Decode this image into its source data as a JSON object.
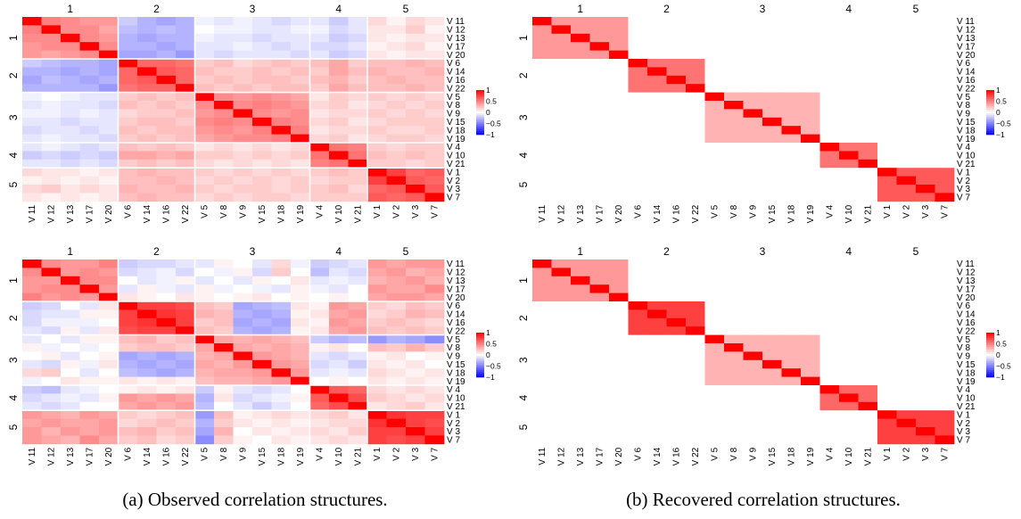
{
  "variables": [
    "V 11",
    "V 12",
    "V 13",
    "V 17",
    "V 20",
    "V 6",
    "V 14",
    "V 16",
    "V 22",
    "V 5",
    "V 8",
    "V 9",
    "V 15",
    "V 18",
    "V 19",
    "V 4",
    "V 10",
    "V 21",
    "V 1",
    "V 2",
    "V 3",
    "V 7"
  ],
  "group_labels": [
    "1",
    "2",
    "3",
    "4",
    "5"
  ],
  "group_sizes": [
    5,
    4,
    6,
    3,
    4
  ],
  "legend": {
    "ticks": [
      "1",
      "0.5",
      "0",
      "−0.5",
      "−1"
    ],
    "low_color": "#0000ff",
    "mid_color": "#ffffff",
    "high_color": "#ff0000"
  },
  "captions": {
    "a": "(a) Observed correlation structures.",
    "b": "(b) Recovered correlation structures."
  },
  "chart_data": [
    {
      "type": "heatmap",
      "id": "observed-top",
      "description_of_matrix": "row i, column j; row/column order follows variables",
      "within_block": [
        0.4,
        0.55,
        0.45,
        0.55,
        0.6
      ],
      "matrix": [
        [
          1.0,
          0.5,
          0.45,
          0.4,
          0.4,
          -0.2,
          -0.3,
          -0.35,
          -0.3,
          -0.05,
          -0.1,
          -0.05,
          -0.1,
          -0.15,
          -0.1,
          -0.1,
          -0.2,
          -0.1,
          0.15,
          0.05,
          0.15,
          0.1
        ],
        [
          0.5,
          1.0,
          0.45,
          0.45,
          0.35,
          -0.25,
          -0.3,
          -0.25,
          -0.3,
          0.0,
          -0.05,
          -0.05,
          -0.1,
          -0.1,
          -0.05,
          -0.05,
          -0.15,
          -0.1,
          0.1,
          0.1,
          0.2,
          0.05
        ],
        [
          0.45,
          0.45,
          1.0,
          0.45,
          0.4,
          -0.3,
          -0.35,
          -0.3,
          -0.3,
          -0.05,
          -0.1,
          -0.1,
          -0.15,
          -0.1,
          -0.1,
          -0.1,
          -0.2,
          -0.15,
          0.1,
          0.05,
          0.1,
          0.1
        ],
        [
          0.4,
          0.45,
          0.45,
          1.0,
          0.45,
          -0.3,
          -0.3,
          -0.35,
          -0.3,
          -0.1,
          -0.1,
          -0.05,
          -0.1,
          -0.15,
          -0.1,
          -0.15,
          -0.15,
          -0.1,
          0.05,
          0.1,
          0.15,
          0.05
        ],
        [
          0.4,
          0.35,
          0.4,
          0.45,
          1.0,
          -0.35,
          -0.35,
          -0.3,
          -0.4,
          -0.1,
          -0.15,
          -0.1,
          -0.1,
          -0.1,
          -0.15,
          -0.1,
          -0.2,
          -0.15,
          0.1,
          0.05,
          0.1,
          0.1
        ],
        [
          -0.2,
          -0.25,
          -0.3,
          -0.3,
          -0.35,
          1.0,
          0.6,
          0.6,
          0.55,
          0.2,
          0.25,
          0.15,
          0.2,
          0.25,
          0.2,
          0.25,
          0.35,
          0.2,
          0.25,
          0.25,
          0.3,
          0.25
        ],
        [
          -0.3,
          -0.3,
          -0.35,
          -0.3,
          -0.35,
          0.6,
          1.0,
          0.65,
          0.6,
          0.25,
          0.2,
          0.2,
          0.25,
          0.2,
          0.25,
          0.2,
          0.35,
          0.25,
          0.3,
          0.25,
          0.25,
          0.3
        ],
        [
          -0.35,
          -0.25,
          -0.3,
          -0.35,
          -0.3,
          0.6,
          0.65,
          1.0,
          0.6,
          0.2,
          0.25,
          0.2,
          0.25,
          0.25,
          0.2,
          0.25,
          0.3,
          0.2,
          0.25,
          0.3,
          0.25,
          0.25
        ],
        [
          -0.3,
          -0.3,
          -0.3,
          -0.3,
          -0.4,
          0.55,
          0.6,
          0.6,
          1.0,
          0.25,
          0.2,
          0.25,
          0.2,
          0.25,
          0.25,
          0.2,
          0.35,
          0.25,
          0.25,
          0.25,
          0.3,
          0.25
        ],
        [
          -0.05,
          0.0,
          -0.05,
          -0.1,
          -0.1,
          0.2,
          0.25,
          0.2,
          0.25,
          1.0,
          0.45,
          0.4,
          0.45,
          0.4,
          0.35,
          0.1,
          0.2,
          0.15,
          0.2,
          0.15,
          0.2,
          0.15
        ],
        [
          -0.1,
          -0.05,
          -0.1,
          -0.1,
          -0.15,
          0.25,
          0.2,
          0.25,
          0.2,
          0.45,
          1.0,
          0.45,
          0.5,
          0.45,
          0.4,
          0.15,
          0.2,
          0.1,
          0.15,
          0.2,
          0.15,
          0.2
        ],
        [
          -0.05,
          -0.05,
          -0.1,
          -0.05,
          -0.1,
          0.15,
          0.2,
          0.2,
          0.25,
          0.4,
          0.45,
          1.0,
          0.45,
          0.4,
          0.45,
          0.1,
          0.15,
          0.15,
          0.2,
          0.15,
          0.2,
          0.15
        ],
        [
          -0.1,
          -0.1,
          -0.15,
          -0.1,
          -0.1,
          0.2,
          0.25,
          0.25,
          0.2,
          0.45,
          0.5,
          0.45,
          1.0,
          0.5,
          0.45,
          0.15,
          0.2,
          0.1,
          0.15,
          0.2,
          0.2,
          0.2
        ],
        [
          -0.15,
          -0.1,
          -0.1,
          -0.15,
          -0.1,
          0.25,
          0.2,
          0.25,
          0.25,
          0.4,
          0.45,
          0.4,
          0.5,
          1.0,
          0.5,
          0.1,
          0.15,
          0.15,
          0.2,
          0.15,
          0.15,
          0.2
        ],
        [
          -0.1,
          -0.05,
          -0.1,
          -0.1,
          -0.15,
          0.2,
          0.25,
          0.2,
          0.25,
          0.35,
          0.4,
          0.45,
          0.45,
          0.5,
          1.0,
          0.15,
          0.2,
          0.1,
          0.15,
          0.2,
          0.2,
          0.15
        ],
        [
          -0.1,
          -0.05,
          -0.1,
          -0.15,
          -0.1,
          0.25,
          0.2,
          0.25,
          0.2,
          0.1,
          0.15,
          0.1,
          0.15,
          0.1,
          0.15,
          1.0,
          0.55,
          0.5,
          0.2,
          0.15,
          0.2,
          0.2
        ],
        [
          -0.2,
          -0.15,
          -0.2,
          -0.15,
          -0.2,
          0.35,
          0.35,
          0.3,
          0.35,
          0.2,
          0.2,
          0.15,
          0.2,
          0.15,
          0.2,
          0.55,
          1.0,
          0.55,
          0.25,
          0.2,
          0.25,
          0.2
        ],
        [
          -0.1,
          -0.1,
          -0.15,
          -0.1,
          -0.15,
          0.2,
          0.25,
          0.2,
          0.25,
          0.15,
          0.1,
          0.15,
          0.1,
          0.15,
          0.1,
          0.5,
          0.55,
          1.0,
          0.2,
          0.2,
          0.15,
          0.2
        ],
        [
          0.15,
          0.1,
          0.1,
          0.05,
          0.1,
          0.25,
          0.3,
          0.25,
          0.25,
          0.2,
          0.15,
          0.2,
          0.15,
          0.2,
          0.15,
          0.2,
          0.25,
          0.2,
          1.0,
          0.75,
          0.6,
          0.65
        ],
        [
          0.05,
          0.1,
          0.05,
          0.1,
          0.05,
          0.25,
          0.25,
          0.3,
          0.25,
          0.15,
          0.2,
          0.15,
          0.2,
          0.15,
          0.2,
          0.15,
          0.2,
          0.2,
          0.75,
          1.0,
          0.65,
          0.6
        ],
        [
          0.15,
          0.2,
          0.1,
          0.15,
          0.1,
          0.3,
          0.25,
          0.25,
          0.3,
          0.2,
          0.15,
          0.2,
          0.2,
          0.15,
          0.2,
          0.2,
          0.25,
          0.15,
          0.6,
          0.65,
          1.0,
          0.65
        ],
        [
          0.1,
          0.05,
          0.1,
          0.05,
          0.1,
          0.25,
          0.3,
          0.25,
          0.25,
          0.15,
          0.2,
          0.15,
          0.2,
          0.2,
          0.15,
          0.2,
          0.2,
          0.2,
          0.65,
          0.6,
          0.65,
          1.0
        ]
      ]
    },
    {
      "type": "heatmap",
      "id": "recovered-top",
      "description_of_matrix": "block-diagonal: 1 on diagonal, within_block inside a block, 0 elsewhere",
      "within_block": [
        0.4,
        0.55,
        0.3,
        0.55,
        0.65
      ]
    },
    {
      "type": "heatmap",
      "id": "observed-bottom",
      "description_of_matrix": "row i, column j; row/column order follows variables",
      "within_block": [
        0.4,
        0.75,
        0.35,
        0.65,
        0.75
      ],
      "matrix": [
        [
          1.0,
          0.45,
          0.4,
          0.4,
          0.5,
          -0.2,
          -0.15,
          -0.15,
          -0.1,
          -0.1,
          0.05,
          0.0,
          -0.1,
          0.15,
          -0.05,
          -0.2,
          -0.15,
          -0.1,
          0.4,
          0.35,
          0.4,
          0.4
        ],
        [
          0.45,
          1.0,
          0.4,
          0.45,
          0.4,
          -0.15,
          -0.1,
          -0.05,
          -0.15,
          0.0,
          -0.05,
          0.05,
          -0.15,
          0.2,
          0.0,
          -0.25,
          -0.1,
          -0.15,
          0.35,
          0.4,
          0.3,
          0.35
        ],
        [
          0.4,
          0.4,
          1.0,
          0.45,
          0.45,
          0.0,
          -0.1,
          -0.05,
          0.05,
          -0.1,
          0.0,
          -0.1,
          0.05,
          0.0,
          0.1,
          -0.1,
          -0.05,
          -0.1,
          0.3,
          0.35,
          0.4,
          0.3
        ],
        [
          0.4,
          0.45,
          0.45,
          1.0,
          0.4,
          -0.1,
          0.05,
          -0.05,
          -0.1,
          0.05,
          -0.05,
          0.0,
          -0.05,
          -0.1,
          0.05,
          -0.05,
          -0.1,
          0.0,
          0.4,
          0.35,
          0.35,
          0.45
        ],
        [
          0.5,
          0.4,
          0.45,
          0.4,
          1.0,
          0.1,
          0.05,
          0.0,
          0.1,
          0.05,
          0.0,
          0.05,
          0.1,
          0.0,
          0.05,
          0.0,
          0.05,
          0.0,
          0.35,
          0.4,
          0.4,
          0.35
        ],
        [
          -0.2,
          -0.15,
          0.0,
          -0.1,
          0.1,
          1.0,
          0.75,
          0.75,
          0.7,
          0.25,
          0.2,
          -0.35,
          -0.3,
          -0.25,
          0.1,
          0.05,
          0.4,
          0.35,
          0.2,
          0.15,
          0.25,
          0.2
        ],
        [
          -0.15,
          -0.1,
          -0.1,
          0.05,
          0.05,
          0.75,
          1.0,
          0.8,
          0.75,
          0.3,
          0.25,
          -0.3,
          -0.35,
          -0.3,
          0.05,
          0.1,
          0.35,
          0.4,
          0.15,
          0.2,
          0.3,
          0.25
        ],
        [
          -0.15,
          -0.05,
          -0.05,
          -0.05,
          0.0,
          0.75,
          0.8,
          1.0,
          0.75,
          0.2,
          0.25,
          -0.35,
          -0.3,
          -0.35,
          0.1,
          0.05,
          0.4,
          0.35,
          0.2,
          0.25,
          0.2,
          0.15
        ],
        [
          -0.1,
          -0.15,
          0.05,
          -0.1,
          0.1,
          0.7,
          0.75,
          0.75,
          1.0,
          0.25,
          0.2,
          -0.3,
          -0.35,
          -0.3,
          0.05,
          0.1,
          0.35,
          0.4,
          0.25,
          0.2,
          0.25,
          0.2
        ],
        [
          -0.1,
          0.0,
          -0.1,
          0.05,
          0.05,
          0.25,
          0.3,
          0.2,
          0.25,
          1.0,
          0.35,
          0.3,
          0.35,
          0.3,
          0.25,
          -0.2,
          -0.3,
          -0.25,
          -0.4,
          -0.3,
          -0.35,
          -0.45
        ],
        [
          0.05,
          -0.05,
          0.0,
          -0.05,
          0.0,
          0.2,
          0.25,
          0.25,
          0.2,
          0.35,
          1.0,
          0.35,
          0.3,
          0.35,
          0.3,
          0.05,
          0.1,
          0.0,
          0.25,
          0.2,
          0.3,
          0.2
        ],
        [
          0.0,
          0.05,
          -0.1,
          0.0,
          0.05,
          -0.35,
          -0.3,
          -0.35,
          -0.3,
          0.3,
          0.35,
          1.0,
          0.4,
          0.35,
          0.3,
          -0.1,
          -0.15,
          -0.1,
          0.05,
          0.1,
          0.0,
          0.05
        ],
        [
          -0.1,
          -0.15,
          0.05,
          -0.05,
          0.1,
          -0.3,
          -0.35,
          -0.3,
          -0.35,
          0.35,
          0.3,
          0.4,
          1.0,
          0.4,
          0.35,
          -0.15,
          -0.1,
          -0.2,
          0.1,
          0.05,
          0.1,
          0.0
        ],
        [
          0.15,
          0.2,
          0.0,
          -0.1,
          0.0,
          -0.25,
          -0.3,
          -0.35,
          -0.3,
          0.3,
          0.35,
          0.35,
          0.4,
          1.0,
          0.4,
          -0.1,
          -0.05,
          -0.1,
          0.15,
          0.1,
          0.05,
          0.1
        ],
        [
          -0.05,
          0.0,
          0.1,
          0.05,
          0.05,
          0.1,
          0.05,
          0.1,
          0.05,
          0.25,
          0.3,
          0.3,
          0.35,
          0.4,
          1.0,
          0.0,
          0.05,
          0.0,
          0.1,
          0.05,
          0.1,
          0.05
        ],
        [
          -0.2,
          -0.25,
          -0.1,
          -0.05,
          0.0,
          0.05,
          0.1,
          0.05,
          0.1,
          -0.2,
          0.05,
          -0.1,
          -0.15,
          -0.1,
          0.0,
          1.0,
          0.65,
          0.6,
          0.15,
          0.1,
          0.15,
          0.1
        ],
        [
          -0.15,
          -0.1,
          -0.05,
          -0.1,
          0.05,
          0.4,
          0.35,
          0.4,
          0.35,
          -0.3,
          0.1,
          -0.15,
          -0.1,
          -0.05,
          0.05,
          0.65,
          1.0,
          0.7,
          0.2,
          0.15,
          0.1,
          0.15
        ],
        [
          -0.1,
          -0.15,
          -0.1,
          0.0,
          0.0,
          0.35,
          0.4,
          0.35,
          0.4,
          -0.25,
          0.0,
          -0.1,
          -0.2,
          -0.1,
          0.0,
          0.6,
          0.7,
          1.0,
          0.1,
          0.15,
          0.2,
          0.1
        ],
        [
          0.4,
          0.35,
          0.3,
          0.4,
          0.35,
          0.2,
          0.15,
          0.2,
          0.25,
          -0.4,
          0.25,
          0.05,
          0.1,
          0.15,
          0.1,
          0.15,
          0.2,
          0.1,
          1.0,
          0.8,
          0.75,
          0.75
        ],
        [
          0.35,
          0.4,
          0.35,
          0.35,
          0.4,
          0.15,
          0.2,
          0.25,
          0.2,
          -0.3,
          0.2,
          0.1,
          0.05,
          0.1,
          0.05,
          0.1,
          0.15,
          0.15,
          0.8,
          1.0,
          0.75,
          0.7
        ],
        [
          0.4,
          0.3,
          0.4,
          0.35,
          0.4,
          0.25,
          0.3,
          0.2,
          0.25,
          -0.35,
          0.3,
          0.0,
          0.1,
          0.05,
          0.1,
          0.15,
          0.1,
          0.2,
          0.75,
          0.75,
          1.0,
          0.75
        ],
        [
          0.4,
          0.35,
          0.3,
          0.45,
          0.35,
          0.2,
          0.25,
          0.15,
          0.2,
          -0.45,
          0.2,
          0.05,
          0.0,
          0.1,
          0.05,
          0.1,
          0.15,
          0.1,
          0.75,
          0.7,
          0.75,
          1.0
        ]
      ]
    },
    {
      "type": "heatmap",
      "id": "recovered-bottom",
      "description_of_matrix": "block-diagonal: 1 on diagonal, within_block inside a block, 0 elsewhere",
      "within_block": [
        0.4,
        0.75,
        0.3,
        0.6,
        0.75
      ]
    }
  ]
}
